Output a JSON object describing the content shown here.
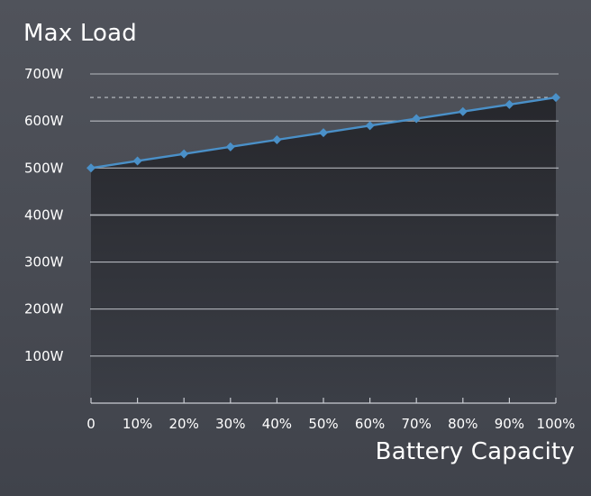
{
  "chart_data": {
    "type": "area",
    "title": "Max Load",
    "xlabel": "Battery Capacity",
    "ylabel": "",
    "categories": [
      "0",
      "10%",
      "20%",
      "30%",
      "40%",
      "50%",
      "60%",
      "70%",
      "80%",
      "90%",
      "100%"
    ],
    "x": [
      0,
      10,
      20,
      30,
      40,
      50,
      60,
      70,
      80,
      90,
      100
    ],
    "series": [
      {
        "values": [
          500,
          515,
          530,
          545,
          560,
          575,
          590,
          605,
          620,
          635,
          650
        ],
        "color": "#4a90c8",
        "marker": "diamond"
      }
    ],
    "reference_line": {
      "value": 650,
      "style": "dashed"
    },
    "y_ticks": [
      {
        "value": 100,
        "label": "100W"
      },
      {
        "value": 200,
        "label": "200W"
      },
      {
        "value": 300,
        "label": "300W"
      },
      {
        "value": 400,
        "label": "400W"
      },
      {
        "value": 500,
        "label": "500W"
      },
      {
        "value": 600,
        "label": "600W"
      },
      {
        "value": 700,
        "label": "700W"
      }
    ],
    "xlim": [
      0,
      100
    ],
    "ylim": [
      0,
      700
    ],
    "grid": true,
    "colors": {
      "background": "#484b53",
      "grid": "#c9ccd2",
      "area_top": "#26272c",
      "area_bottom": "#3b3e46",
      "text": "#ffffff",
      "line": "#4a90c8"
    }
  }
}
